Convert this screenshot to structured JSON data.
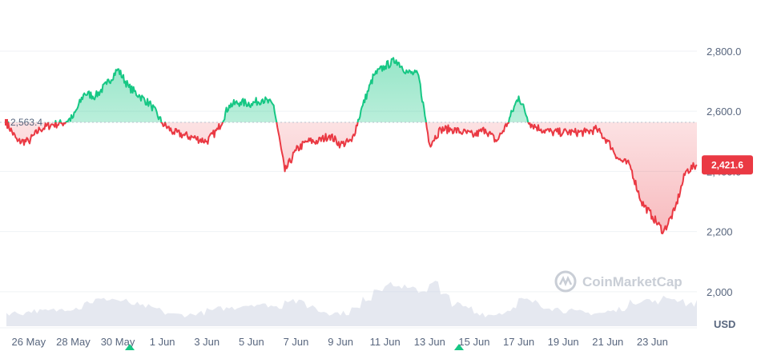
{
  "chart_data": {
    "type": "line",
    "currency": "USD",
    "reference": {
      "value": 2563.4,
      "label": "2,563.4"
    },
    "current": {
      "value": 2421.6,
      "label": "2,421.6"
    },
    "y_ticks": [
      {
        "value": 2800,
        "label": "2,800.0"
      },
      {
        "value": 2600,
        "label": "2,600.0"
      },
      {
        "value": 2400,
        "label": "2,400.0"
      },
      {
        "value": 2200,
        "label": "2,200"
      },
      {
        "value": 2000,
        "label": "2,000"
      }
    ],
    "ylim": [
      1880,
      2970
    ],
    "x_ticks": [
      "26 May",
      "28 May",
      "30 May",
      "1 Jun",
      "3 Jun",
      "5 Jun",
      "7 Jun",
      "9 Jun",
      "11 Jun",
      "13 Jun",
      "15 Jun",
      "17 Jun",
      "19 Jun",
      "21 Jun",
      "23 Jun"
    ],
    "xlim": [
      "2024-05-25",
      "2024-06-25"
    ],
    "grid": true,
    "series": [
      {
        "x": [
          "2024-05-25",
          "2024-05-25T12:00",
          "2024-05-26",
          "2024-05-26T12:00",
          "2024-05-27",
          "2024-05-27T12:00",
          "2024-05-28",
          "2024-05-28T12:00",
          "2024-05-29",
          "2024-05-29T12:00",
          "2024-05-30",
          "2024-05-30T12:00",
          "2024-05-31",
          "2024-05-31T12:00",
          "2024-06-01",
          "2024-06-01T12:00",
          "2024-06-02",
          "2024-06-02T12:00",
          "2024-06-03",
          "2024-06-03T12:00",
          "2024-06-04",
          "2024-06-04T12:00",
          "2024-06-05",
          "2024-06-05T12:00",
          "2024-06-06",
          "2024-06-06T12:00",
          "2024-06-07",
          "2024-06-07T12:00",
          "2024-06-08",
          "2024-06-08T12:00",
          "2024-06-09",
          "2024-06-09T12:00",
          "2024-06-10",
          "2024-06-10T12:00",
          "2024-06-11",
          "2024-06-11T12:00",
          "2024-06-12",
          "2024-06-12T12:00",
          "2024-06-13",
          "2024-06-13T12:00",
          "2024-06-14",
          "2024-06-14T12:00",
          "2024-06-15",
          "2024-06-15T12:00",
          "2024-06-16",
          "2024-06-16T12:00",
          "2024-06-17",
          "2024-06-17T12:00",
          "2024-06-18",
          "2024-06-18T12:00",
          "2024-06-19",
          "2024-06-19T12:00",
          "2024-06-20",
          "2024-06-20T12:00",
          "2024-06-21",
          "2024-06-21T12:00",
          "2024-06-22",
          "2024-06-22T12:00",
          "2024-06-23",
          "2024-06-23T12:00",
          "2024-06-24",
          "2024-06-24T12:00",
          "2024-06-25"
        ],
        "values": [
          2563,
          2500,
          2500,
          2540,
          2555,
          2560,
          2580,
          2660,
          2650,
          2690,
          2740,
          2680,
          2650,
          2620,
          2560,
          2530,
          2520,
          2510,
          2500,
          2540,
          2620,
          2630,
          2625,
          2640,
          2620,
          2400,
          2470,
          2500,
          2500,
          2520,
          2490,
          2500,
          2620,
          2720,
          2750,
          2770,
          2730,
          2720,
          2490,
          2540,
          2540,
          2530,
          2520,
          2540,
          2500,
          2560,
          2650,
          2560,
          2540,
          2530,
          2530,
          2530,
          2530,
          2540,
          2500,
          2440,
          2420,
          2300,
          2250,
          2200,
          2270,
          2400,
          2421.6
        ]
      }
    ],
    "volume": [
      0.3,
      0.3,
      0.35,
      0.34,
      0.36,
      0.4,
      0.42,
      0.55,
      0.6,
      0.62,
      0.58,
      0.5,
      0.45,
      0.4,
      0.3,
      0.26,
      0.26,
      0.3,
      0.36,
      0.4,
      0.42,
      0.48,
      0.5,
      0.48,
      0.44,
      0.6,
      0.55,
      0.45,
      0.34,
      0.3,
      0.3,
      0.4,
      0.62,
      0.85,
      0.95,
      0.9,
      0.85,
      0.8,
      1.0,
      0.7,
      0.5,
      0.42,
      0.3,
      0.26,
      0.3,
      0.4,
      0.6,
      0.55,
      0.45,
      0.4,
      0.35,
      0.32,
      0.3,
      0.3,
      0.34,
      0.4,
      0.55,
      0.6,
      0.55,
      0.65,
      0.6,
      0.5,
      0.55
    ]
  },
  "colors": {
    "up": "#16c784",
    "down": "#ea3943",
    "grid": "#eff2f5",
    "text": "#58667e",
    "volume": "#cfd6e4"
  },
  "watermark": "CoinMarketCap",
  "currency_label": "USD"
}
